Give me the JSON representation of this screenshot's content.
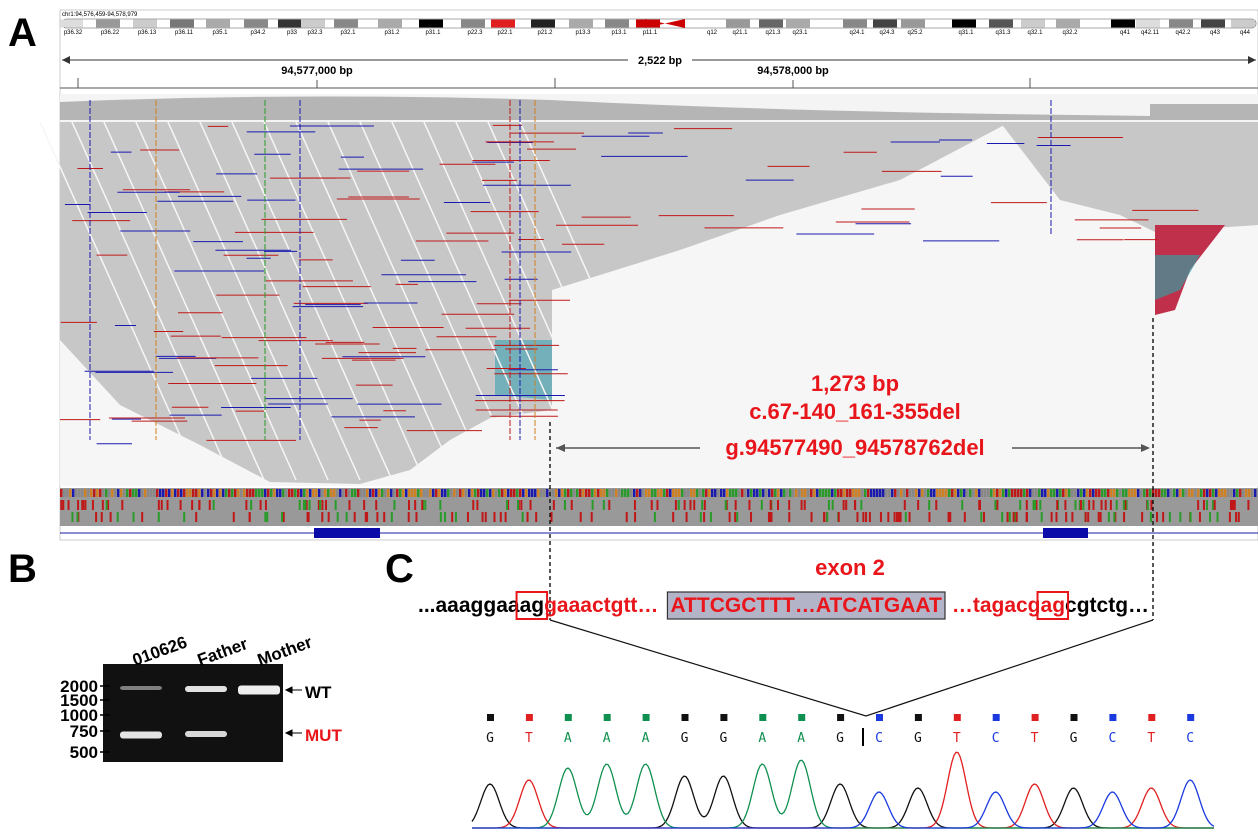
{
  "panel_a": {
    "label": "A",
    "locus": "chr1:94,576,459-94,578,979",
    "cytobands": [
      "p36.32",
      "p36.22",
      "p36.13",
      "p36.11",
      "p35.1",
      "p34.2",
      "p33",
      "p32.3",
      "p32.1",
      "p31.2",
      "p31.1",
      "p22.3",
      "p22.1",
      "p21.2",
      "p13.3",
      "p13.1",
      "p11.1",
      "q12",
      "q21.1",
      "q21.3",
      "q23.1",
      "q24.1",
      "q24.3",
      "q25.2",
      "q31.1",
      "q31.3",
      "q32.1",
      "q32.2",
      "q41",
      "q42.11",
      "q42.2",
      "q43",
      "q44"
    ],
    "span": "2,522 bp",
    "ruler_labels": [
      "94,577,000 bp",
      "94,578,000 bp"
    ],
    "deletion": {
      "size": "1,273 bp",
      "cdna": "c.67-140_161-355del",
      "genomic": "g.94577490_94578762del"
    }
  },
  "panel_b": {
    "label": "B",
    "lanes": [
      "010626",
      "Father",
      "Mother"
    ],
    "ladder": [
      "2000",
      "1500",
      "1000",
      "750",
      "500"
    ],
    "bands": [
      "WT",
      "MUT"
    ]
  },
  "panel_c": {
    "label": "C",
    "exon": "exon 2",
    "sequence": [
      "...aaaggaa",
      "ag",
      "gaaactgtt…",
      "ATTCGCTTT…ATCATGAAT",
      "…tagacg",
      "ag",
      "cgtctg…"
    ],
    "bases": [
      "G",
      "T",
      "A",
      "A",
      "A",
      "G",
      "G",
      "A",
      "A",
      "G",
      "C",
      "G",
      "T",
      "C",
      "T",
      "G",
      "C",
      "T",
      "C"
    ]
  }
}
